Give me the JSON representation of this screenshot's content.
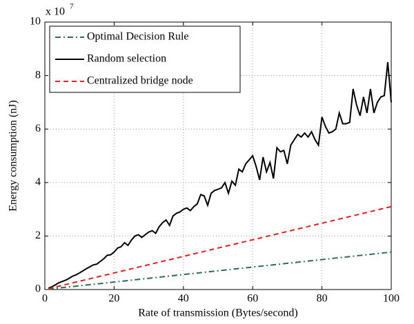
{
  "chart_data": {
    "type": "line",
    "xlabel": "Rate of transmission (Bytes/second)",
    "ylabel": "Energy consumption (nJ)",
    "y_exponent": {
      "base": "x 10",
      "power": "7"
    },
    "xlim": [
      0,
      100
    ],
    "xticks": [
      0,
      20,
      40,
      60,
      80,
      100
    ],
    "ylim": [
      0,
      10
    ],
    "yticks": [
      0,
      2,
      4,
      6,
      8,
      10
    ],
    "grid": true,
    "legend": "upper left",
    "series": [
      {
        "name": "Optimal Decision Rule",
        "color": "#2e6b4f",
        "dash": "dashdot",
        "x": [
          1,
          100
        ],
        "values": [
          0.014,
          1.4
        ]
      },
      {
        "name": "Random selection",
        "color": "#000000",
        "dash": "solid",
        "x": [
          1,
          2,
          3,
          4,
          5,
          6,
          7,
          8,
          9,
          10,
          11,
          12,
          13,
          14,
          15,
          16,
          17,
          18,
          19,
          20,
          21,
          22,
          23,
          24,
          25,
          26,
          27,
          28,
          29,
          30,
          31,
          32,
          33,
          34,
          35,
          36,
          37,
          38,
          39,
          40,
          41,
          42,
          43,
          44,
          45,
          46,
          47,
          48,
          49,
          50,
          51,
          52,
          53,
          54,
          55,
          56,
          57,
          58,
          59,
          60,
          61,
          62,
          63,
          64,
          65,
          66,
          67,
          68,
          69,
          70,
          71,
          72,
          73,
          74,
          75,
          76,
          77,
          78,
          79,
          80,
          81,
          82,
          83,
          84,
          85,
          86,
          87,
          88,
          89,
          90,
          91,
          92,
          93,
          94,
          95,
          96,
          97,
          98,
          99,
          100
        ],
        "values": [
          0.05,
          0.1,
          0.17,
          0.25,
          0.3,
          0.35,
          0.42,
          0.5,
          0.55,
          0.62,
          0.7,
          0.78,
          0.85,
          0.92,
          0.95,
          1.05,
          1.15,
          1.28,
          1.3,
          1.4,
          1.55,
          1.6,
          1.75,
          1.65,
          1.85,
          2.0,
          2.05,
          1.95,
          2.05,
          2.15,
          2.2,
          2.1,
          2.35,
          2.5,
          2.6,
          2.4,
          2.75,
          2.85,
          2.9,
          3.0,
          3.05,
          2.95,
          3.1,
          3.2,
          3.55,
          3.5,
          3.15,
          3.6,
          3.7,
          3.75,
          3.8,
          4.0,
          3.6,
          4.05,
          3.9,
          4.5,
          4.4,
          4.7,
          4.85,
          5.0,
          4.6,
          4.1,
          4.95,
          4.4,
          4.75,
          4.15,
          5.3,
          5.15,
          5.2,
          4.7,
          5.4,
          5.6,
          5.8,
          5.7,
          5.85,
          5.7,
          5.9,
          5.6,
          5.4,
          6.45,
          6.1,
          5.85,
          5.9,
          6.0,
          6.6,
          6.2,
          6.2,
          6.25,
          7.5,
          6.9,
          6.5,
          7.2,
          6.6,
          7.5,
          6.6,
          7.0,
          7.2,
          7.25,
          8.5,
          7.0
        ]
      },
      {
        "name": "Centralized bridge node",
        "color": "#e02020",
        "dash": "dashed",
        "x": [
          1,
          100
        ],
        "values": [
          0.031,
          3.1
        ]
      }
    ]
  }
}
